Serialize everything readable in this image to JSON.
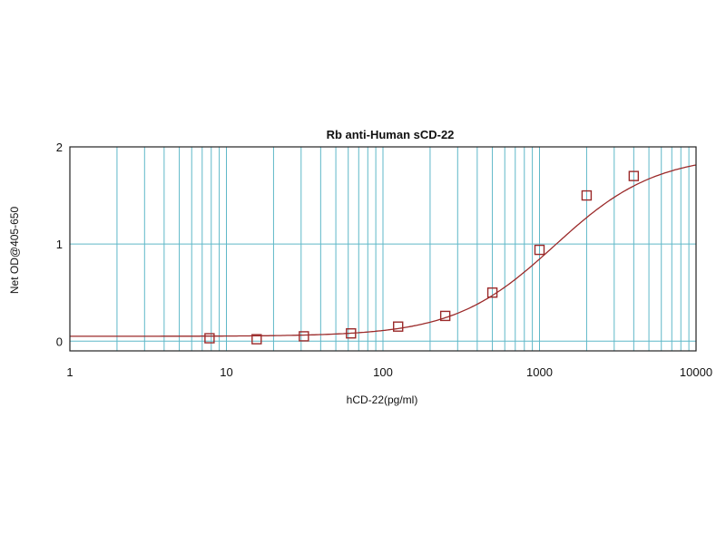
{
  "chart_data": {
    "type": "scatter",
    "title": "Rb anti-Human sCD-22",
    "xlabel": "hCD-22(pg/ml)",
    "ylabel": "Net OD@405-650",
    "x_scale": "log",
    "xlim": [
      1,
      10000
    ],
    "ylim": [
      -0.1,
      2.0
    ],
    "x_ticks": [
      1,
      10,
      100,
      1000,
      10000
    ],
    "x_tick_labels": [
      "1",
      "10",
      "100",
      "1000",
      "10000"
    ],
    "y_ticks": [
      0,
      1,
      2
    ],
    "y_tick_labels": [
      "0",
      "1",
      "2"
    ],
    "grid": true,
    "series": [
      {
        "marker": "square",
        "x": [
          7.8,
          15.6,
          31.25,
          62.5,
          125,
          250,
          500,
          1000,
          2000,
          4000
        ],
        "y": [
          0.03,
          0.02,
          0.05,
          0.08,
          0.15,
          0.26,
          0.5,
          0.94,
          1.5,
          1.7
        ]
      }
    ],
    "fit_curve": {
      "model": "4PL",
      "bottom": 0.05,
      "top": 1.92,
      "ec50": 1250,
      "hill": 1.35
    },
    "colors": {
      "grid": "#5fb8c8",
      "curve": "#9b2a2a",
      "marker": "#9b2a2a",
      "axis": "#222222"
    }
  }
}
